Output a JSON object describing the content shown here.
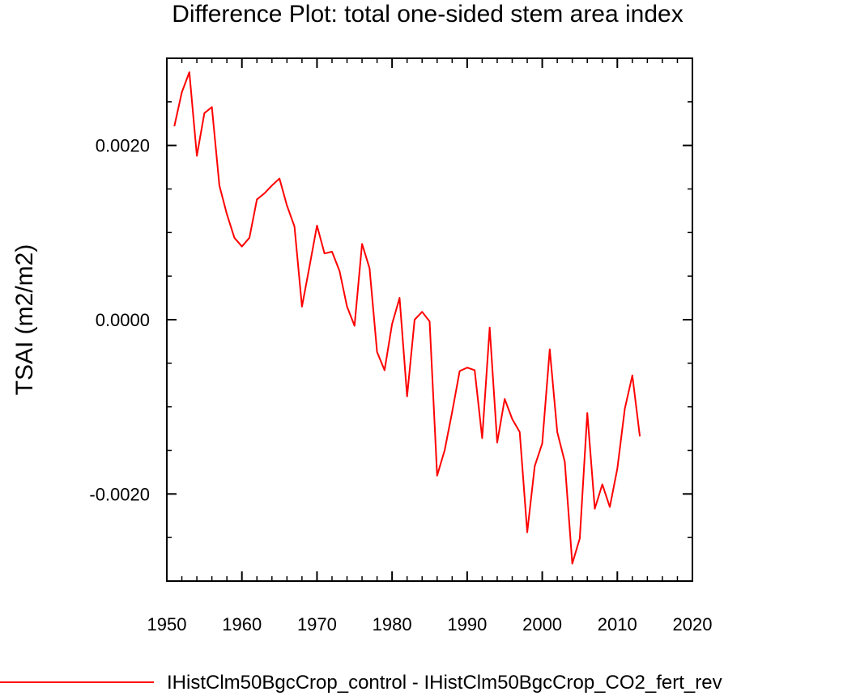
{
  "chart_data": {
    "type": "line",
    "title": "Difference Plot: total one-sided stem area index",
    "ylabel": "TSAI  (m2/m2)",
    "xlabel": "",
    "xlim": [
      1950,
      2020
    ],
    "ylim": [
      -0.003,
      0.003
    ],
    "xticks": [
      1950,
      1960,
      1970,
      1980,
      1990,
      2000,
      2010,
      2020
    ],
    "xtick_labels": [
      "1950",
      "1960",
      "1970",
      "1980",
      "1990",
      "2000",
      "2010",
      "2020"
    ],
    "xminor_step": 2,
    "yticks": [
      -0.002,
      0.0,
      0.002
    ],
    "ytick_labels": [
      "-0.0020",
      "0.0000",
      "0.0020"
    ],
    "yminor_step": 0.0005,
    "grid": false,
    "legend_position": "bottom",
    "series": [
      {
        "name": "IHistClm50BgcCrop_control - IHistClm50BgcCrop_CO2_fert_rev",
        "color": "#ff0000",
        "x": [
          1951,
          1952,
          1953,
          1954,
          1955,
          1956,
          1957,
          1958,
          1959,
          1960,
          1961,
          1962,
          1963,
          1964,
          1965,
          1966,
          1967,
          1968,
          1969,
          1970,
          1971,
          1972,
          1973,
          1974,
          1975,
          1976,
          1977,
          1978,
          1979,
          1980,
          1981,
          1982,
          1983,
          1984,
          1985,
          1986,
          1987,
          1988,
          1989,
          1990,
          1991,
          1992,
          1993,
          1994,
          1995,
          1996,
          1997,
          1998,
          1999,
          2000,
          2001,
          2002,
          2003,
          2004,
          2005,
          2006,
          2007,
          2008,
          2009,
          2010,
          2011,
          2012,
          2013
        ],
        "y": [
          0.00222,
          0.00261,
          0.00284,
          0.00188,
          0.00237,
          0.00244,
          0.00154,
          0.00121,
          0.00094,
          0.00084,
          0.00094,
          0.00138,
          0.00145,
          0.00154,
          0.00162,
          0.00131,
          0.00107,
          0.00015,
          0.00061,
          0.00108,
          0.00076,
          0.00078,
          0.00056,
          0.00015,
          -7e-05,
          0.00087,
          0.00059,
          -0.00037,
          -0.00058,
          -5e-05,
          0.00025,
          -0.00088,
          0.0,
          9e-05,
          -2e-05,
          -0.00179,
          -0.0015,
          -0.00106,
          -0.00059,
          -0.00055,
          -0.00058,
          -0.00136,
          -9e-05,
          -0.00141,
          -0.00091,
          -0.00114,
          -0.00129,
          -0.00244,
          -0.00168,
          -0.00142,
          -0.00034,
          -0.00129,
          -0.00163,
          -0.0028,
          -0.00251,
          -0.00107,
          -0.00217,
          -0.00189,
          -0.00215,
          -0.00171,
          -0.00102,
          -0.00064,
          -0.00134
        ]
      }
    ]
  }
}
